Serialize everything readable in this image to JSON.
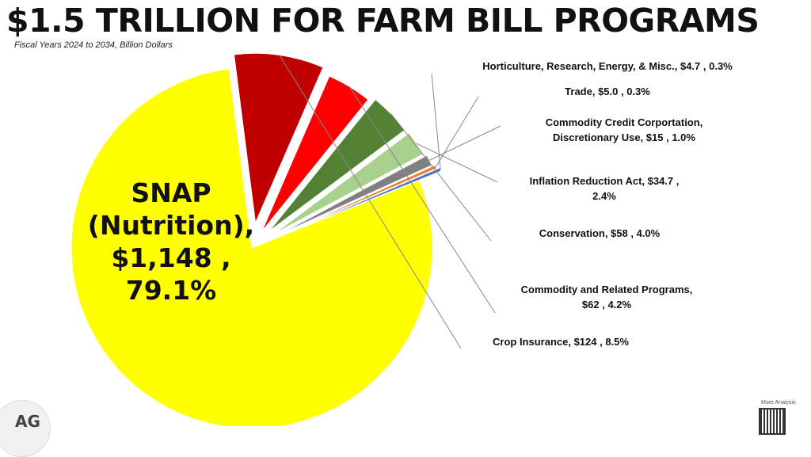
{
  "title": "$1.5 TRILLION FOR FARM BILL PROGRAMS",
  "subtitle": "Fiscal Years 2024 to 2034, Billion Dollars",
  "logo_text": "AG",
  "more_analysis": "More Analysis",
  "chart_data": {
    "type": "pie",
    "exploded": true,
    "start_angle_deg": -22,
    "slices": [
      {
        "name": "SNAP (Nutrition)",
        "value": 1148,
        "percent": 79.1,
        "color": "#ffff00",
        "label_lines": [
          "SNAP",
          "(Nutrition),",
          "$1,148 ,",
          "79.1%"
        ]
      },
      {
        "name": "Crop Insurance",
        "value": 124,
        "percent": 8.5,
        "color": "#c00000",
        "label_lines": [
          "Crop Insurance,  $124 , 8.5%"
        ]
      },
      {
        "name": "Commodity and Related Programs",
        "value": 62,
        "percent": 4.2,
        "color": "#ff0000",
        "label_lines": [
          "Commodity and Related Programs,",
          "$62 , 4.2%"
        ]
      },
      {
        "name": "Conservation",
        "value": 58,
        "percent": 4.0,
        "color": "#548235",
        "label_lines": [
          "Conservation,  $58 , 4.0%"
        ]
      },
      {
        "name": "Inflation Reduction Act",
        "value": 34.7,
        "percent": 2.4,
        "color": "#a9d18e",
        "label_lines": [
          "Inflation Reduction Act,  $34.7 ,",
          "2.4%"
        ]
      },
      {
        "name": "Commodity Credit Corportation, Discretionary Use",
        "value": 15,
        "percent": 1.0,
        "color": "#808080",
        "label_lines": [
          "Commodity Credit Corportation,",
          "Discretionary Use,  $15 , 1.0%"
        ]
      },
      {
        "name": "Trade",
        "value": 5.0,
        "percent": 0.3,
        "color": "#ed7d31",
        "label_lines": [
          "Trade,  $5.0 , 0.3%"
        ]
      },
      {
        "name": "Horticulture, Research, Energy, & Misc.",
        "value": 4.7,
        "percent": 0.3,
        "color": "#4472c4",
        "label_lines": [
          "Horticulture, Research, Energy, & Misc.,  $4.7 , 0.3%"
        ]
      }
    ]
  }
}
